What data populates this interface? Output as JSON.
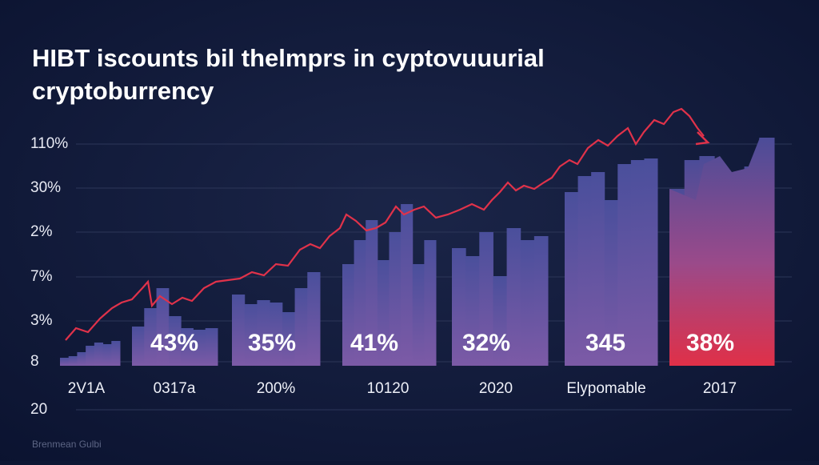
{
  "title_lines": [
    "HIBT iscounts bil thelmprs in cyptovuuurial",
    "cryptoburrency"
  ],
  "y_axis_labels": [
    "110%",
    "30%",
    "2%",
    "7%",
    "3%",
    "8",
    "20"
  ],
  "categories": [
    "2V1A",
    "0317a",
    "200%",
    "10120",
    "2020",
    "Elypomable",
    "2017"
  ],
  "bar_labels": [
    "43%",
    "35%",
    "41%",
    "32%",
    "345",
    "38%"
  ],
  "footer": "Brenmean Gulbi"
}
